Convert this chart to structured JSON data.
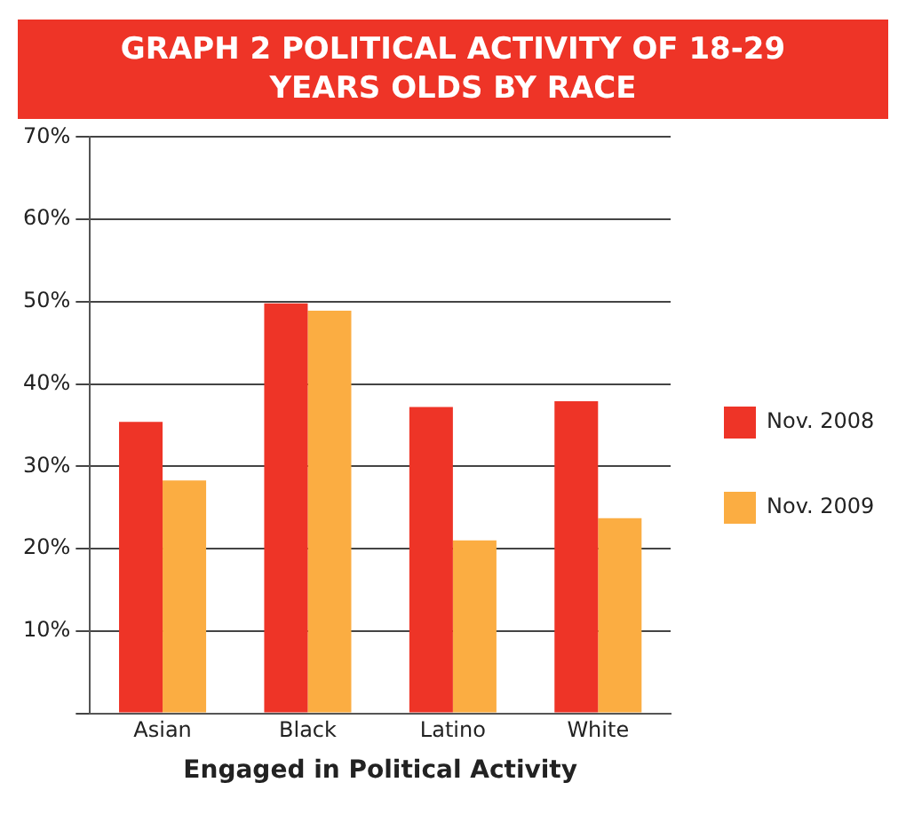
{
  "chart_data": {
    "type": "bar",
    "title": "GRAPH 2 POLITICAL ACTIVITY OF 18-29 YEARS OLDS BY RACE",
    "xlabel": "Engaged in Political Activity",
    "categories": [
      "Asian",
      "Black",
      "Latino",
      "White"
    ],
    "series": [
      {
        "name": "Nov. 2008",
        "color": "#ee3427",
        "values": [
          35.4,
          49.8,
          37.2,
          37.9
        ]
      },
      {
        "name": "Nov. 2009",
        "color": "#fbad42",
        "values": [
          28.3,
          48.9,
          21.0,
          23.7
        ]
      }
    ],
    "ylim": [
      0,
      70
    ],
    "yticks": [
      {
        "value": 0,
        "label": null
      },
      {
        "value": 10,
        "label": "10%"
      },
      {
        "value": 20,
        "label": "20%"
      },
      {
        "value": 30,
        "label": "30%"
      },
      {
        "value": 40,
        "label": "40%"
      },
      {
        "value": 50,
        "label": "50%"
      },
      {
        "value": 60,
        "label": "60%"
      },
      {
        "value": 70,
        "label": "70%"
      }
    ],
    "grid": "y",
    "legend": "right"
  }
}
